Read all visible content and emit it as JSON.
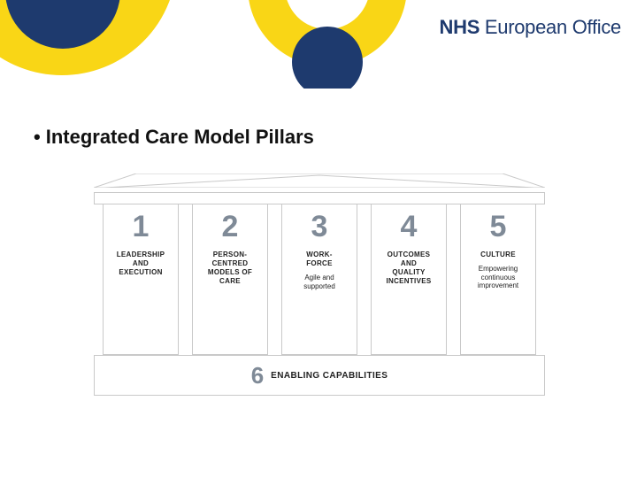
{
  "colors": {
    "nhs_blue": "#1e3a6e",
    "nhs_yellow": "#f9d616",
    "pillar_border": "#c9c9c9",
    "number_grey": "#7f8a97",
    "text": "#111111",
    "background": "#ffffff"
  },
  "header": {
    "brand_bold": "NHS",
    "brand_regular": " European Office"
  },
  "title": "Integrated Care Model Pillars",
  "diagram": {
    "type": "infographic",
    "pillars": [
      {
        "n": "1",
        "label": "LEADERSHIP\nAND\nEXECUTION",
        "sub": ""
      },
      {
        "n": "2",
        "label": "PERSON-\nCENTRED\nMODELS OF\nCARE",
        "sub": ""
      },
      {
        "n": "3",
        "label": "WORK-\nFORCE",
        "sub": "Agile and\nsupported"
      },
      {
        "n": "4",
        "label": "OUTCOMES\nAND\nQUALITY\nINCENTIVES",
        "sub": ""
      },
      {
        "n": "5",
        "label": "CULTURE",
        "sub": "Empowering\ncontinuous\nimprovement"
      }
    ],
    "base": {
      "n": "6",
      "label": "ENABLING CAPABILITIES"
    }
  }
}
